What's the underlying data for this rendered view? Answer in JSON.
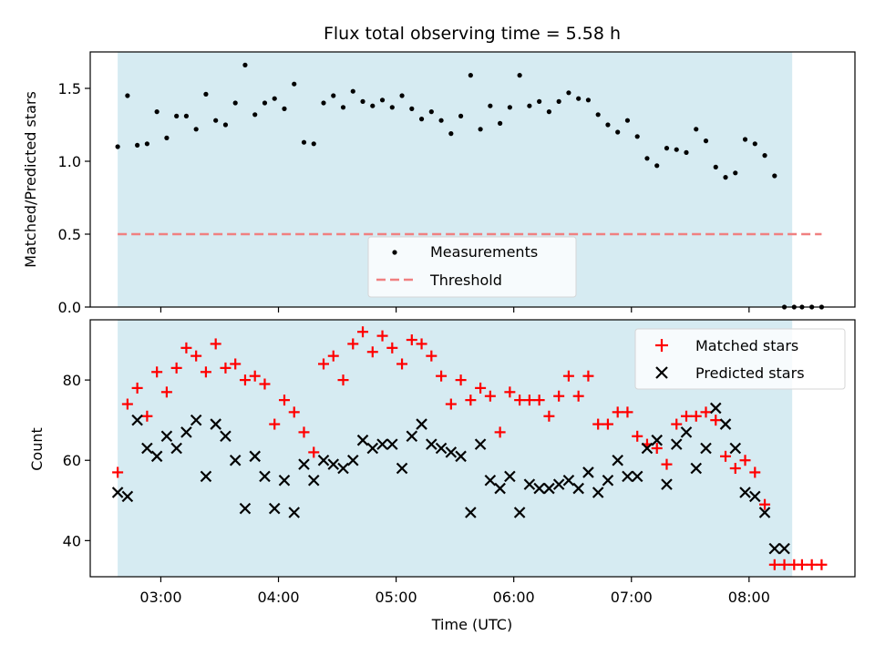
{
  "chart_data": [
    {
      "type": "scatter",
      "title": "Flux total observing time = 5.58 h",
      "xlabel": "",
      "ylabel": "Matched/Predicted stars",
      "xlim": [
        "02:24",
        "08:54"
      ],
      "ylim": [
        0,
        1.75
      ],
      "yticks": [
        "0.0",
        "0.5",
        "1.0",
        "1.5"
      ],
      "xticks": [
        "03:00",
        "04:00",
        "05:00",
        "06:00",
        "07:00",
        "08:00"
      ],
      "shaded_span": [
        "02:38",
        "08:22"
      ],
      "legend_position": "lower-center",
      "legend": [
        "Measurements",
        "Threshold"
      ],
      "threshold": {
        "value": 0.5,
        "x": [
          "02:38",
          "08:37"
        ],
        "color": "#f08080"
      },
      "series": [
        {
          "name": "Measurements",
          "marker": "dot",
          "color": "#000000",
          "x": [
            "02:38",
            "02:43",
            "02:48",
            "02:53",
            "02:58",
            "03:03",
            "03:08",
            "03:13",
            "03:18",
            "03:23",
            "03:28",
            "03:33",
            "03:38",
            "03:43",
            "03:48",
            "03:53",
            "03:58",
            "04:03",
            "04:08",
            "04:13",
            "04:18",
            "04:23",
            "04:28",
            "04:33",
            "04:38",
            "04:43",
            "04:48",
            "04:53",
            "04:58",
            "05:03",
            "05:08",
            "05:13",
            "05:18",
            "05:23",
            "05:28",
            "05:33",
            "05:38",
            "05:43",
            "05:48",
            "05:53",
            "05:58",
            "06:03",
            "06:08",
            "06:13",
            "06:18",
            "06:23",
            "06:28",
            "06:33",
            "06:38",
            "06:43",
            "06:48",
            "06:53",
            "06:58",
            "07:03",
            "07:08",
            "07:13",
            "07:18",
            "07:23",
            "07:28",
            "07:33",
            "07:38",
            "07:43",
            "07:48",
            "07:53",
            "07:58",
            "08:03",
            "08:08",
            "08:13",
            "08:18",
            "08:23",
            "08:27",
            "08:32",
            "08:37"
          ],
          "y": [
            1.1,
            1.45,
            1.11,
            1.12,
            1.34,
            1.16,
            1.31,
            1.31,
            1.22,
            1.46,
            1.28,
            1.25,
            1.4,
            1.66,
            1.32,
            1.4,
            1.43,
            1.36,
            1.53,
            1.13,
            1.12,
            1.4,
            1.45,
            1.37,
            1.48,
            1.41,
            1.38,
            1.42,
            1.37,
            1.45,
            1.36,
            1.29,
            1.34,
            1.28,
            1.19,
            1.31,
            1.59,
            1.22,
            1.38,
            1.26,
            1.37,
            1.59,
            1.38,
            1.41,
            1.34,
            1.41,
            1.47,
            1.43,
            1.42,
            1.32,
            1.25,
            1.2,
            1.28,
            1.17,
            1.02,
            0.97,
            1.09,
            1.08,
            1.06,
            1.22,
            1.14,
            0.96,
            0.89,
            0.92,
            1.15,
            1.12,
            1.04,
            0.9,
            0.0,
            0.0,
            0.0,
            0.0,
            0.0
          ]
        }
      ]
    },
    {
      "type": "scatter",
      "title": "",
      "xlabel": "Time (UTC)",
      "ylabel": "Count",
      "xlim": [
        "02:24",
        "08:54"
      ],
      "ylim": [
        31,
        95
      ],
      "yticks": [
        "40",
        "60",
        "80"
      ],
      "xticks": [
        "03:00",
        "04:00",
        "05:00",
        "06:00",
        "07:00",
        "08:00"
      ],
      "shaded_span": [
        "02:38",
        "08:22"
      ],
      "legend_position": "top-right",
      "legend": [
        "Matched stars",
        "Predicted stars"
      ],
      "series": [
        {
          "name": "Matched stars",
          "marker": "plus",
          "color": "#ff0000",
          "x": [
            "02:38",
            "02:43",
            "02:48",
            "02:53",
            "02:58",
            "03:03",
            "03:08",
            "03:13",
            "03:18",
            "03:23",
            "03:28",
            "03:33",
            "03:38",
            "03:43",
            "03:48",
            "03:53",
            "03:58",
            "04:03",
            "04:08",
            "04:13",
            "04:18",
            "04:23",
            "04:28",
            "04:33",
            "04:38",
            "04:43",
            "04:48",
            "04:53",
            "04:58",
            "05:03",
            "05:08",
            "05:13",
            "05:18",
            "05:23",
            "05:28",
            "05:33",
            "05:38",
            "05:43",
            "05:48",
            "05:53",
            "05:58",
            "06:03",
            "06:08",
            "06:13",
            "06:18",
            "06:23",
            "06:28",
            "06:33",
            "06:38",
            "06:43",
            "06:48",
            "06:53",
            "06:58",
            "07:03",
            "07:08",
            "07:13",
            "07:18",
            "07:23",
            "07:28",
            "07:33",
            "07:38",
            "07:43",
            "07:48",
            "07:53",
            "07:58",
            "08:03",
            "08:08",
            "08:13",
            "08:18",
            "08:23",
            "08:27",
            "08:32",
            "08:37"
          ],
          "y": [
            57,
            74,
            78,
            71,
            82,
            77,
            83,
            88,
            86,
            82,
            89,
            83,
            84,
            80,
            81,
            79,
            69,
            75,
            72,
            67,
            62,
            84,
            86,
            80,
            89,
            92,
            87,
            91,
            88,
            84,
            90,
            89,
            86,
            81,
            74,
            80,
            75,
            78,
            76,
            67,
            77,
            75,
            75,
            75,
            71,
            76,
            81,
            76,
            81,
            69,
            69,
            72,
            72,
            66,
            64,
            63,
            59,
            69,
            71,
            71,
            72,
            70,
            61,
            58,
            60,
            57,
            49,
            34,
            34,
            34,
            34,
            34,
            34
          ]
        },
        {
          "name": "Predicted stars",
          "marker": "x",
          "color": "#000000",
          "x": [
            "02:38",
            "02:43",
            "02:48",
            "02:53",
            "02:58",
            "03:03",
            "03:08",
            "03:13",
            "03:18",
            "03:23",
            "03:28",
            "03:33",
            "03:38",
            "03:43",
            "03:48",
            "03:53",
            "03:58",
            "04:03",
            "04:08",
            "04:13",
            "04:18",
            "04:23",
            "04:28",
            "04:33",
            "04:38",
            "04:43",
            "04:48",
            "04:53",
            "04:58",
            "05:03",
            "05:08",
            "05:13",
            "05:18",
            "05:23",
            "05:28",
            "05:33",
            "05:38",
            "05:43",
            "05:48",
            "05:53",
            "05:58",
            "06:03",
            "06:08",
            "06:13",
            "06:18",
            "06:23",
            "06:28",
            "06:33",
            "06:38",
            "06:43",
            "06:48",
            "06:53",
            "06:58",
            "07:03",
            "07:08",
            "07:13",
            "07:18",
            "07:23",
            "07:28",
            "07:33",
            "07:38",
            "07:43",
            "07:48",
            "07:53",
            "07:58",
            "08:03",
            "08:08",
            "08:13",
            "08:18"
          ],
          "y": [
            52,
            51,
            70,
            63,
            61,
            66,
            63,
            67,
            70,
            56,
            69,
            66,
            60,
            48,
            61,
            56,
            48,
            55,
            47,
            59,
            55,
            60,
            59,
            58,
            60,
            65,
            63,
            64,
            64,
            58,
            66,
            69,
            64,
            63,
            62,
            61,
            47,
            64,
            55,
            53,
            56,
            47,
            54,
            53,
            53,
            54,
            55,
            53,
            57,
            52,
            55,
            60,
            56,
            56,
            63,
            65,
            54,
            64,
            67,
            58,
            63,
            73,
            69,
            63,
            52,
            51,
            47,
            38,
            38
          ]
        }
      ]
    }
  ]
}
